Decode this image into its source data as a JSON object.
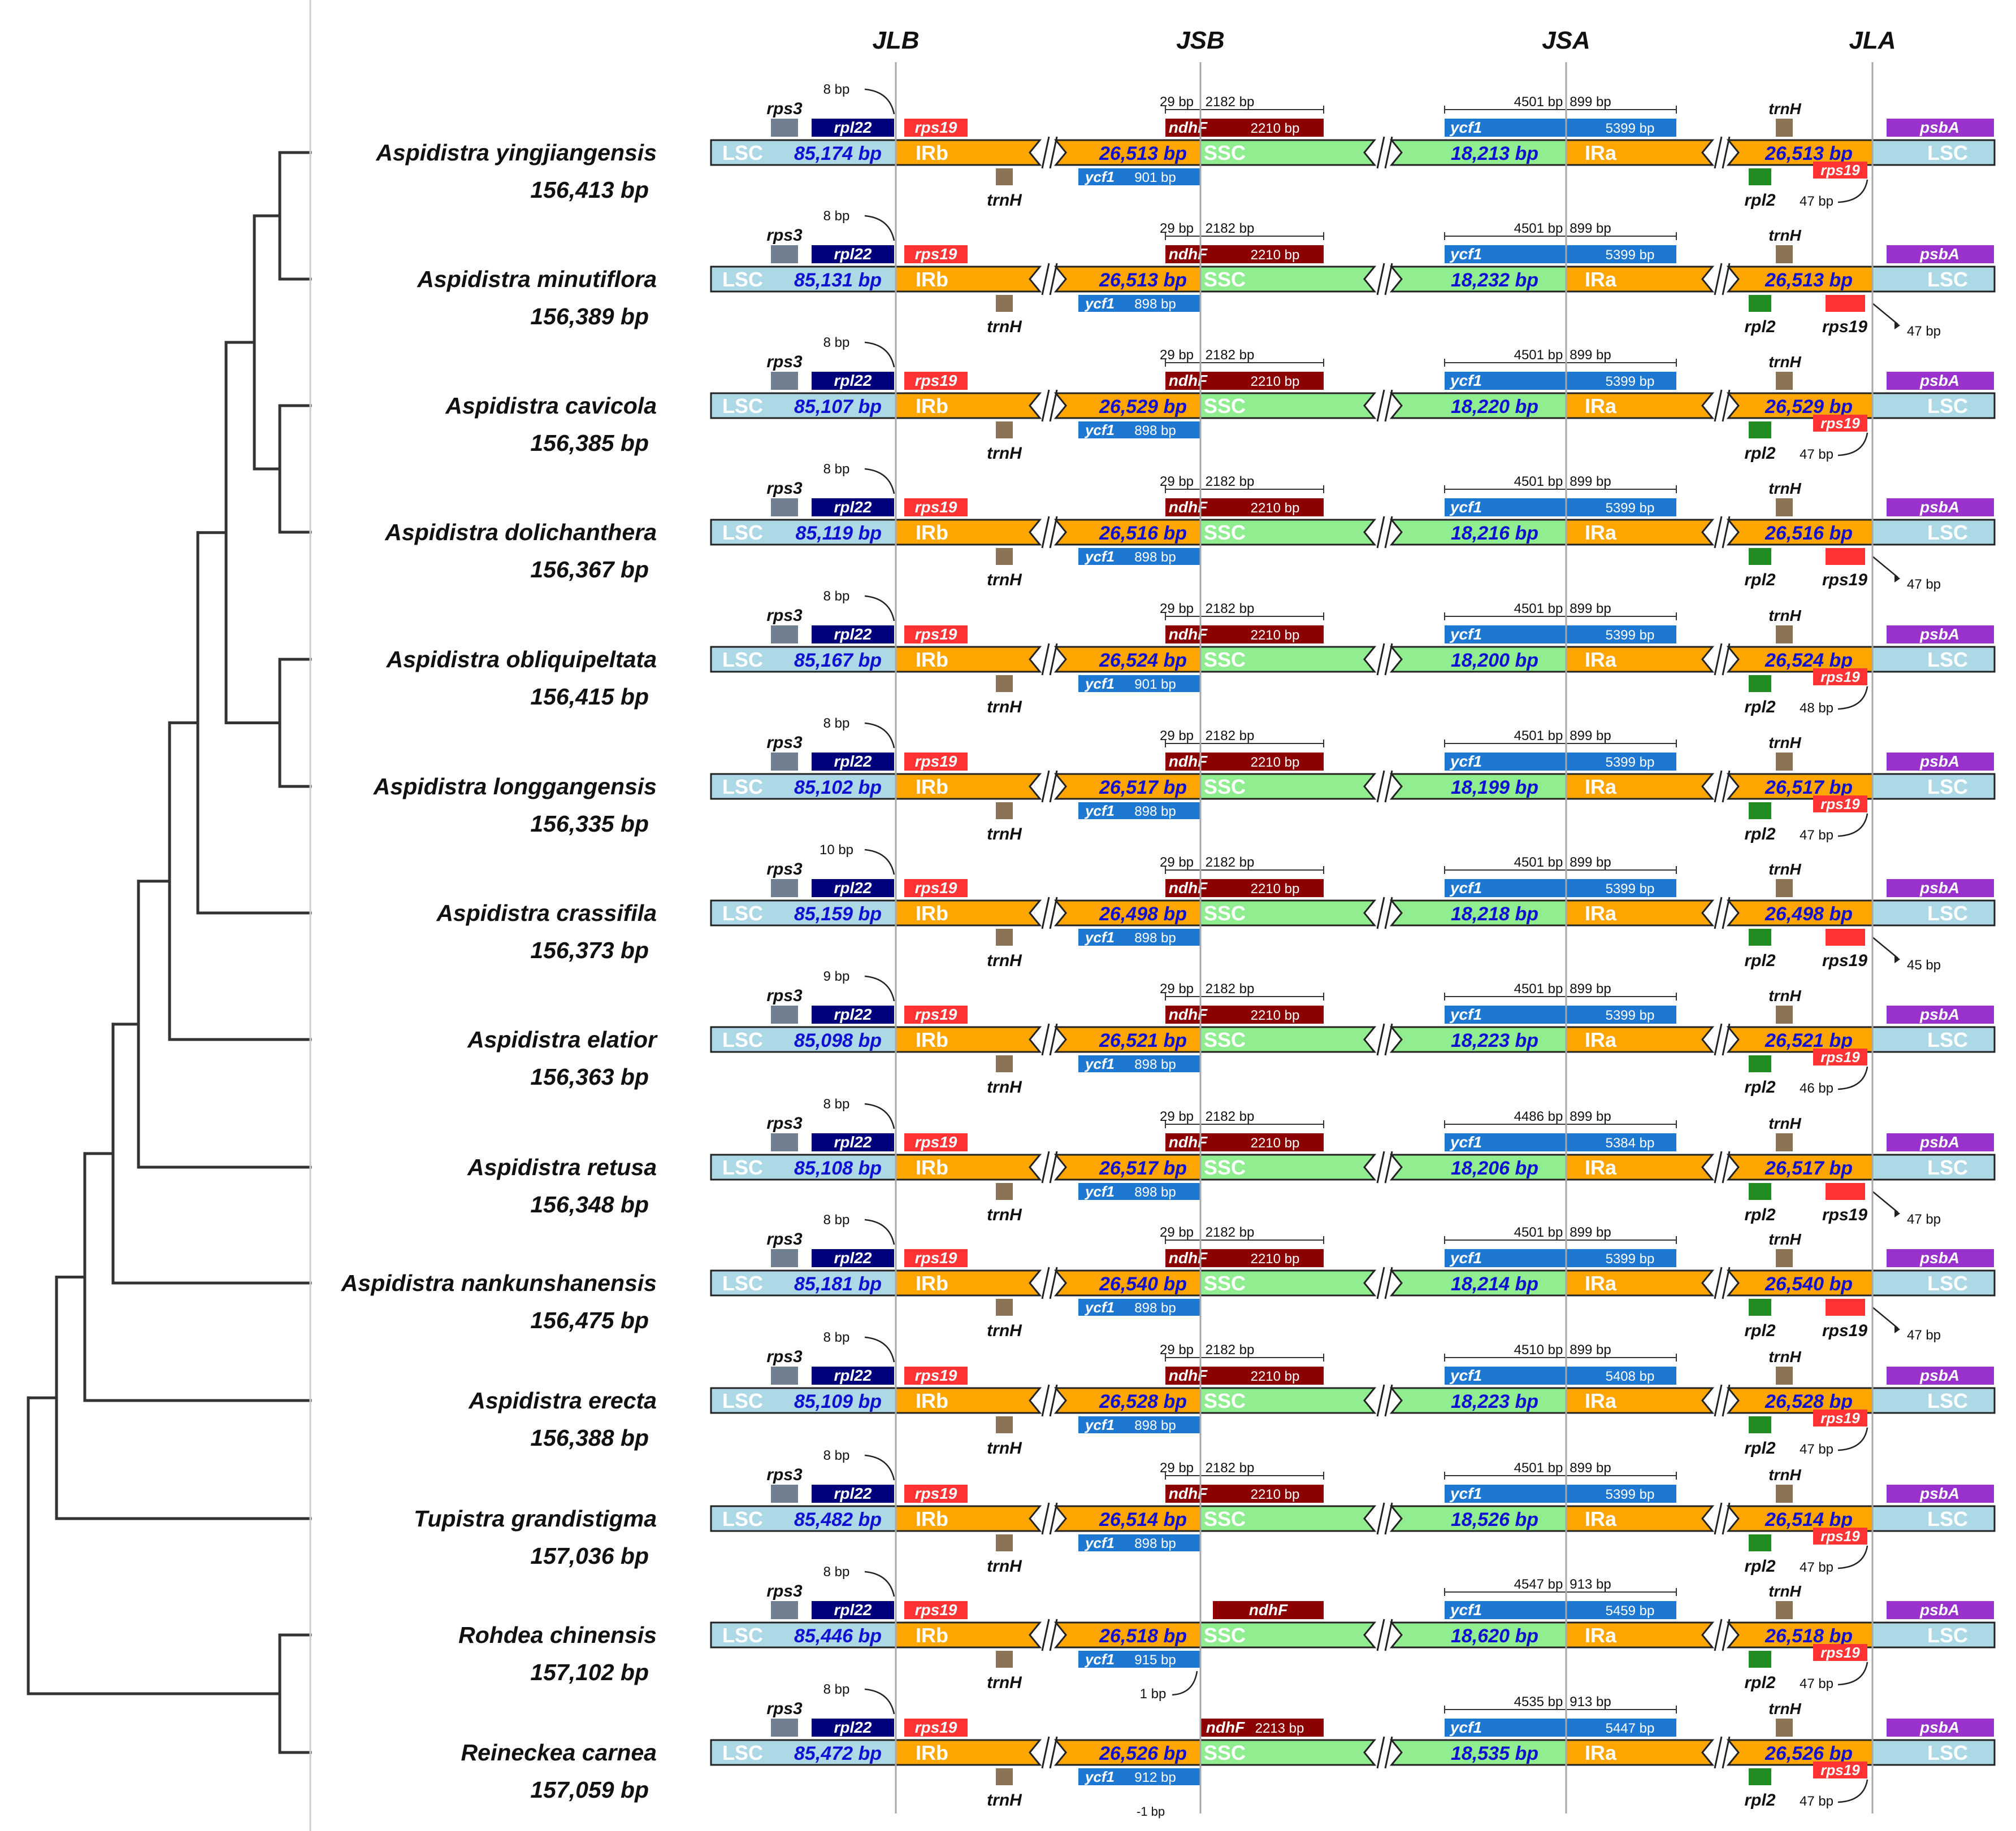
{
  "junction_headers": [
    "JLB",
    "JSB",
    "JSA",
    "JLA"
  ],
  "colors": {
    "lsc": "#add8e6",
    "ir": "#ffa500",
    "ssc": "#90ee90",
    "rps3": "#708090",
    "rpl22": "#00007a",
    "rps19": "#ff3333",
    "trnH": "#8b7355",
    "ndhF": "#8b0000",
    "ycf1": "#1e78d2",
    "rpl2": "#228b22",
    "psbA": "#9932cc",
    "len_text": "#1010d0",
    "tree": "#333333"
  },
  "labels": {
    "lsc": "LSC",
    "irb": "IRb",
    "ssc": "SSC",
    "ira": "IRa",
    "rps3": "rps3",
    "rpl22": "rpl22",
    "rps19": "rps19",
    "trnH": "trnH",
    "ndhF": "ndhF",
    "ycf1": "ycf1",
    "rpl2": "rpl2",
    "psbA": "psbA"
  },
  "genomes": [
    {
      "species": "Aspidistra yingjiangensis",
      "total": "156,413 bp",
      "lsc": "85,174 bp",
      "irb": "26,513 bp",
      "ssc": "18,213 bp",
      "ira": "26,513 bp",
      "rpl22_gap": "8 bp",
      "ndhF_left": "29 bp",
      "ndhF_right": "2182 bp",
      "ndhF_len": "2210 bp",
      "ycf1_jsb": "901 bp",
      "ycf1_left": "4501 bp",
      "ycf1_right": "899 bp",
      "ycf1_len": "5399 bp",
      "rps19_jla": "47 bp",
      "rps19_style": "overlap"
    },
    {
      "species": "Aspidistra minutiflora",
      "total": "156,389 bp",
      "lsc": "85,131 bp",
      "irb": "26,513 bp",
      "ssc": "18,232 bp",
      "ira": "26,513 bp",
      "rpl22_gap": "8 bp",
      "ndhF_left": "29 bp",
      "ndhF_right": "2182 bp",
      "ndhF_len": "2210 bp",
      "ycf1_jsb": "898 bp",
      "ycf1_left": "4501 bp",
      "ycf1_right": "899 bp",
      "ycf1_len": "5399 bp",
      "rps19_jla": "47 bp",
      "rps19_style": "below"
    },
    {
      "species": "Aspidistra cavicola",
      "total": "156,385 bp",
      "lsc": "85,107 bp",
      "irb": "26,529 bp",
      "ssc": "18,220 bp",
      "ira": "26,529 bp",
      "rpl22_gap": "8 bp",
      "ndhF_left": "29 bp",
      "ndhF_right": "2182 bp",
      "ndhF_len": "2210 bp",
      "ycf1_jsb": "898 bp",
      "ycf1_left": "4501 bp",
      "ycf1_right": "899 bp",
      "ycf1_len": "5399 bp",
      "rps19_jla": "47 bp",
      "rps19_style": "overlap"
    },
    {
      "species": "Aspidistra dolichanthera",
      "total": "156,367 bp",
      "lsc": "85,119 bp",
      "irb": "26,516 bp",
      "ssc": "18,216 bp",
      "ira": "26,516 bp",
      "rpl22_gap": "8 bp",
      "ndhF_left": "29 bp",
      "ndhF_right": "2182 bp",
      "ndhF_len": "2210 bp",
      "ycf1_jsb": "898 bp",
      "ycf1_left": "4501 bp",
      "ycf1_right": "899 bp",
      "ycf1_len": "5399 bp",
      "rps19_jla": "47 bp",
      "rps19_style": "below"
    },
    {
      "species": "Aspidistra obliquipeltata",
      "total": "156,415 bp",
      "lsc": "85,167 bp",
      "irb": "26,524 bp",
      "ssc": "18,200 bp",
      "ira": "26,524 bp",
      "rpl22_gap": "8 bp",
      "ndhF_left": "29 bp",
      "ndhF_right": "2182 bp",
      "ndhF_len": "2210 bp",
      "ycf1_jsb": "901 bp",
      "ycf1_left": "4501 bp",
      "ycf1_right": "899 bp",
      "ycf1_len": "5399 bp",
      "rps19_jla": "48 bp",
      "rps19_style": "overlap"
    },
    {
      "species": "Aspidistra longgangensis",
      "total": "156,335 bp",
      "lsc": "85,102 bp",
      "irb": "26,517 bp",
      "ssc": "18,199 bp",
      "ira": "26,517 bp",
      "rpl22_gap": "8 bp",
      "ndhF_left": "29 bp",
      "ndhF_right": "2182 bp",
      "ndhF_len": "2210 bp",
      "ycf1_jsb": "898 bp",
      "ycf1_left": "4501 bp",
      "ycf1_right": "899 bp",
      "ycf1_len": "5399 bp",
      "rps19_jla": "47 bp",
      "rps19_style": "overlap"
    },
    {
      "species": "Aspidistra crassifila",
      "total": "156,373 bp",
      "lsc": "85,159 bp",
      "irb": "26,498 bp",
      "ssc": "18,218 bp",
      "ira": "26,498 bp",
      "rpl22_gap": "10 bp",
      "ndhF_left": "29 bp",
      "ndhF_right": "2182 bp",
      "ndhF_len": "2210 bp",
      "ycf1_jsb": "898 bp",
      "ycf1_left": "4501 bp",
      "ycf1_right": "899 bp",
      "ycf1_len": "5399 bp",
      "rps19_jla": "45 bp",
      "rps19_style": "below"
    },
    {
      "species": "Aspidistra elatior",
      "total": "156,363 bp",
      "lsc": "85,098 bp",
      "irb": "26,521 bp",
      "ssc": "18,223 bp",
      "ira": "26,521 bp",
      "rpl22_gap": "9 bp",
      "ndhF_left": "29 bp",
      "ndhF_right": "2182 bp",
      "ndhF_len": "2210 bp",
      "ycf1_jsb": "898 bp",
      "ycf1_left": "4501 bp",
      "ycf1_right": "899 bp",
      "ycf1_len": "5399 bp",
      "rps19_jla": "46 bp",
      "rps19_style": "overlap"
    },
    {
      "species": "Aspidistra retusa",
      "total": "156,348 bp",
      "lsc": "85,108 bp",
      "irb": "26,517 bp",
      "ssc": "18,206 bp",
      "ira": "26,517 bp",
      "rpl22_gap": "8 bp",
      "ndhF_left": "29 bp",
      "ndhF_right": "2182 bp",
      "ndhF_len": "2210 bp",
      "ycf1_jsb": "898 bp",
      "ycf1_left": "4486 bp",
      "ycf1_right": "899 bp",
      "ycf1_len": "5384 bp",
      "rps19_jla": "47 bp",
      "rps19_style": "below"
    },
    {
      "species": "Aspidistra nankunshanensis",
      "total": "156,475 bp",
      "lsc": "85,181 bp",
      "irb": "26,540 bp",
      "ssc": "18,214 bp",
      "ira": "26,540 bp",
      "rpl22_gap": "8 bp",
      "ndhF_left": "29 bp",
      "ndhF_right": "2182 bp",
      "ndhF_len": "2210 bp",
      "ycf1_jsb": "898 bp",
      "ycf1_left": "4501 bp",
      "ycf1_right": "899 bp",
      "ycf1_len": "5399 bp",
      "rps19_jla": "47 bp",
      "rps19_style": "below"
    },
    {
      "species": "Aspidistra erecta",
      "total": "156,388 bp",
      "lsc": "85,109 bp",
      "irb": "26,528 bp",
      "ssc": "18,223 bp",
      "ira": "26,528 bp",
      "rpl22_gap": "8 bp",
      "ndhF_left": "29 bp",
      "ndhF_right": "2182 bp",
      "ndhF_len": "2210 bp",
      "ycf1_jsb": "898 bp",
      "ycf1_left": "4510 bp",
      "ycf1_right": "899 bp",
      "ycf1_len": "5408 bp",
      "rps19_jla": "47 bp",
      "rps19_style": "overlap"
    },
    {
      "species": "Tupistra grandistigma",
      "total": "157,036 bp",
      "lsc": "85,482 bp",
      "irb": "26,514 bp",
      "ssc": "18,526 bp",
      "ira": "26,514 bp",
      "rpl22_gap": "8 bp",
      "ndhF_left": "29 bp",
      "ndhF_right": "2182 bp",
      "ndhF_len": "2210 bp",
      "ycf1_jsb": "898 bp",
      "ycf1_left": "4501 bp",
      "ycf1_right": "899 bp",
      "ycf1_len": "5399 bp",
      "rps19_jla": "47 bp",
      "rps19_style": "overlap"
    },
    {
      "species": "Rohdea chinensis",
      "total": "157,102 bp",
      "lsc": "85,446 bp",
      "irb": "26,518 bp",
      "ssc": "18,620 bp",
      "ira": "26,518 bp",
      "rpl22_gap": "8 bp",
      "ndhF_mode": "ssc-only",
      "ycf1_jsb": "915 bp",
      "jsb_extra": "1 bp",
      "ycf1_left": "4547 bp",
      "ycf1_right": "913 bp",
      "ycf1_len": "5459 bp",
      "rps19_jla": "47 bp",
      "rps19_style": "overlap"
    },
    {
      "species": "Reineckea carnea",
      "total": "157,059 bp",
      "lsc": "85,472 bp",
      "irb": "26,526 bp",
      "ssc": "18,535 bp",
      "ira": "26,526 bp",
      "rpl22_gap": "8 bp",
      "ndhF_mode": "at-jsb",
      "ndhF_len": "2213 bp",
      "ycf1_jsb": "912 bp",
      "jsb_extra": "-1 bp",
      "ycf1_left": "4535 bp",
      "ycf1_right": "913 bp",
      "ycf1_len": "5447 bp",
      "rps19_jla": "47 bp",
      "rps19_style": "overlap"
    }
  ]
}
